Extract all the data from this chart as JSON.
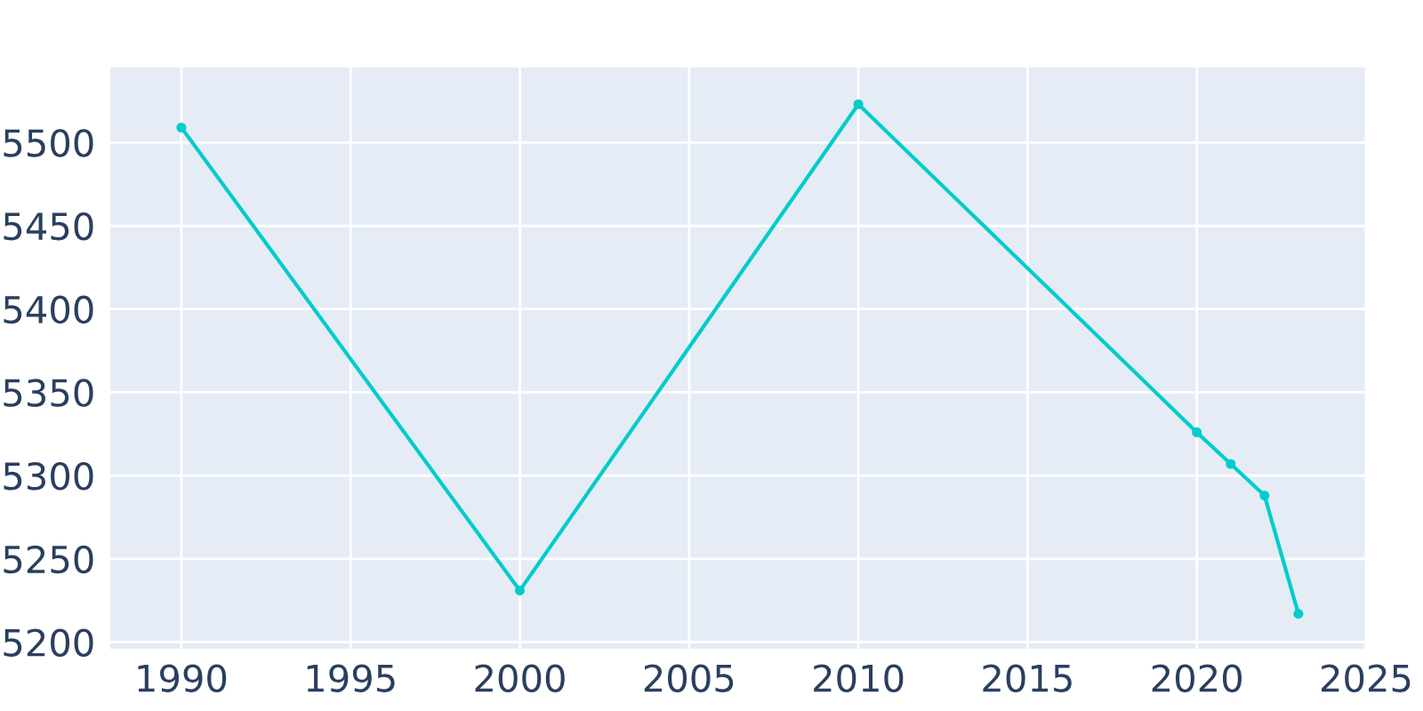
{
  "chart_data": {
    "type": "line",
    "x": [
      1990,
      2000,
      2010,
      2020,
      2021,
      2022,
      2023
    ],
    "series": [
      {
        "color": "#00cccc",
        "values": [
          5509,
          5231,
          5523,
          5326,
          5307,
          5288,
          5217
        ]
      }
    ],
    "xlim": [
      1987.9,
      2025
    ],
    "xticks": [
      1990,
      1995,
      2000,
      2005,
      2010,
      2015,
      2020,
      2025
    ],
    "ylim": [
      5196,
      5545
    ],
    "yticks": [
      5200,
      5250,
      5300,
      5350,
      5400,
      5450,
      5500
    ],
    "grid": true,
    "marker": "circle",
    "line_style": "solid"
  }
}
